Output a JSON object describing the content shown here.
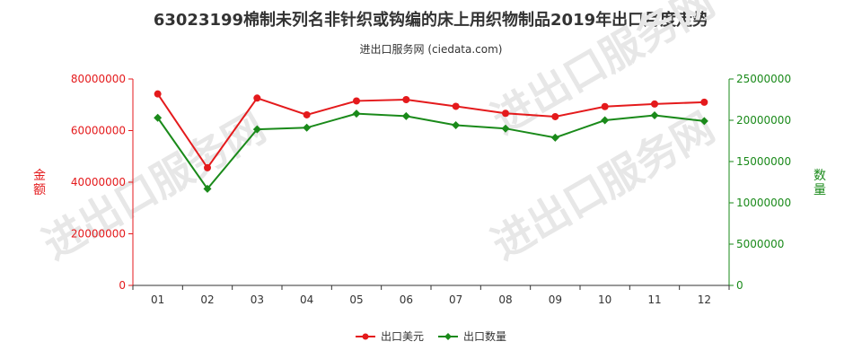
{
  "title": "63023199棉制未列名非针织或钩编的床上用织物制品2019年出口月度走势",
  "subtitle": "进出口服务网 (ciedata.com)",
  "watermark": "进出口服务网",
  "chart_data": {
    "type": "line",
    "categories": [
      "01",
      "02",
      "03",
      "04",
      "05",
      "06",
      "07",
      "08",
      "09",
      "10",
      "11",
      "12"
    ],
    "y_left": {
      "label": "金额",
      "range": [
        0,
        80000000
      ],
      "ticks": [
        "0",
        "20000000",
        "40000000",
        "60000000",
        "80000000"
      ],
      "color": "#e41a1c"
    },
    "y_right": {
      "label": "数量",
      "range": [
        0,
        25000000
      ],
      "ticks": [
        "0",
        "5000000",
        "10000000",
        "15000000",
        "20000000",
        "25000000"
      ],
      "color": "#1a8a1a"
    },
    "series": [
      {
        "name": "出口美元",
        "axis": "left",
        "color": "#e41a1c",
        "values": [
          74200000,
          45600000,
          72600000,
          66100000,
          71500000,
          72000000,
          69400000,
          66700000,
          65400000,
          69300000,
          70300000,
          71000000
        ]
      },
      {
        "name": "出口数量",
        "axis": "right",
        "color": "#1a8a1a",
        "values": [
          20300000,
          11700000,
          18900000,
          19100000,
          20800000,
          20500000,
          19400000,
          19000000,
          17900000,
          20000000,
          20600000,
          19900000
        ]
      }
    ],
    "legend_position": "bottom-center",
    "grid": false
  }
}
